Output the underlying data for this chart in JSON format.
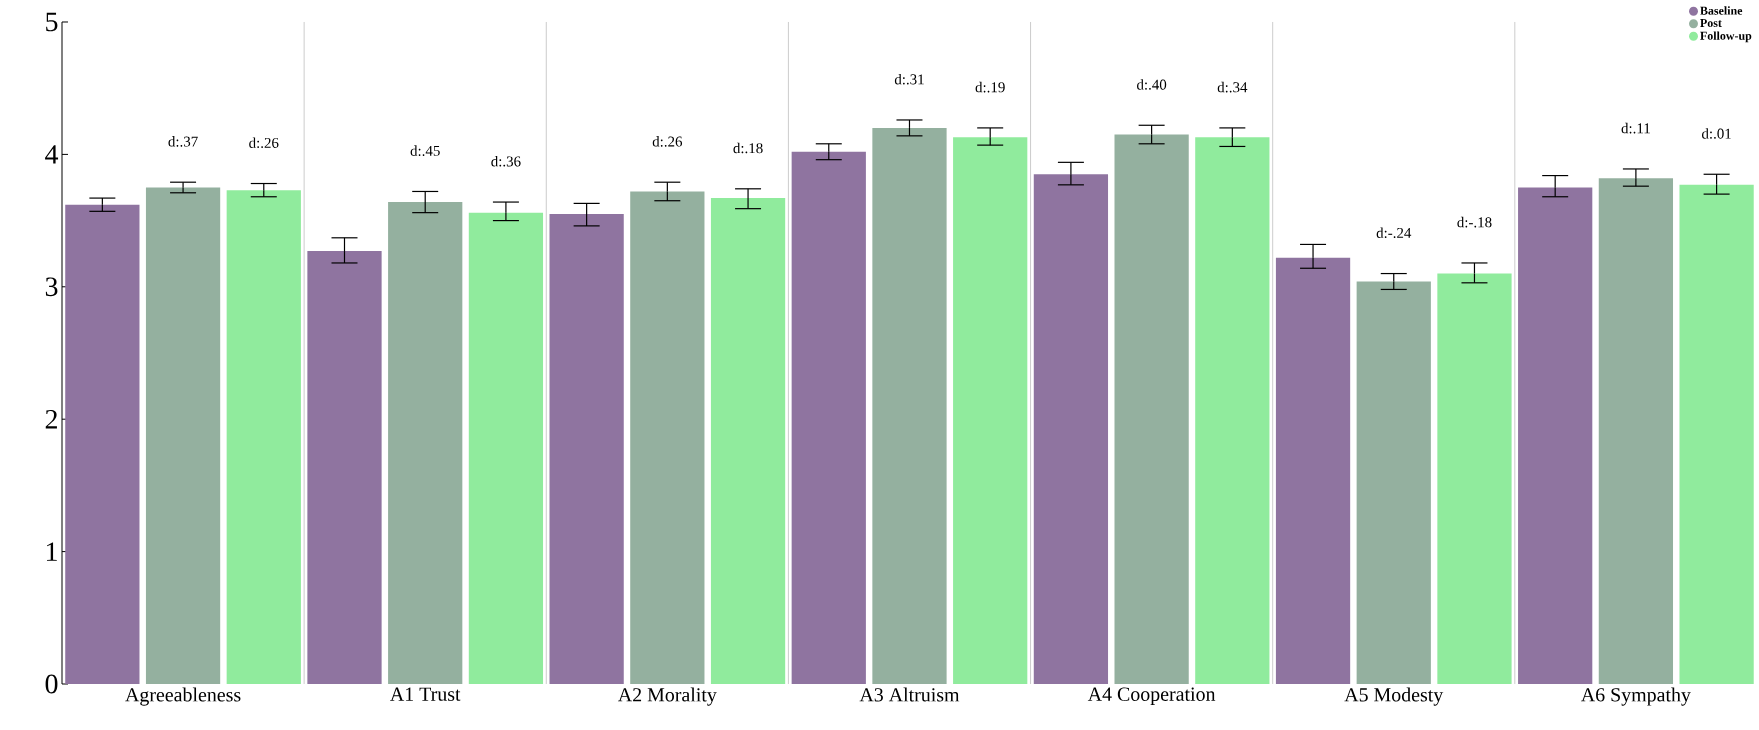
{
  "chart_data": {
    "type": "bar",
    "categories": [
      "Agreeableness",
      "A1 Trust",
      "A2 Morality",
      "A3 Altruism",
      "A4 Cooperation",
      "A5 Modesty",
      "A6 Sympathy"
    ],
    "series": [
      {
        "name": "Baseline",
        "color": "#8f74a0",
        "values": [
          3.62,
          3.27,
          3.55,
          4.02,
          3.85,
          3.22,
          3.75
        ],
        "errors": [
          [
            3.57,
            3.67
          ],
          [
            3.18,
            3.37
          ],
          [
            3.46,
            3.63
          ],
          [
            3.96,
            4.08
          ],
          [
            3.77,
            3.94
          ],
          [
            3.14,
            3.32
          ],
          [
            3.68,
            3.84
          ]
        ]
      },
      {
        "name": "Post",
        "color": "#94b09f",
        "values": [
          3.75,
          3.64,
          3.72,
          4.2,
          4.15,
          3.04,
          3.82
        ],
        "errors": [
          [
            3.71,
            3.79
          ],
          [
            3.56,
            3.72
          ],
          [
            3.65,
            3.79
          ],
          [
            4.14,
            4.26
          ],
          [
            4.08,
            4.22
          ],
          [
            2.98,
            3.1
          ],
          [
            3.76,
            3.89
          ]
        ]
      },
      {
        "name": "Follow-up",
        "color": "#90eb9d",
        "values": [
          3.73,
          3.56,
          3.67,
          4.13,
          4.13,
          3.1,
          3.77
        ],
        "errors": [
          [
            3.68,
            3.78
          ],
          [
            3.5,
            3.64
          ],
          [
            3.59,
            3.74
          ],
          [
            4.07,
            4.2
          ],
          [
            4.06,
            4.2
          ],
          [
            3.03,
            3.18
          ],
          [
            3.7,
            3.85
          ]
        ]
      }
    ],
    "annotations": [
      "d:.37",
      "d:.26",
      "d:.45",
      "d:.36",
      "d:.26",
      "d:.18",
      "d:.31",
      "d:.19",
      "d:.40",
      "d:.34",
      "d:-.24",
      "d:-.18",
      "d:.11",
      "d:.01"
    ],
    "ylim": [
      0,
      5
    ],
    "yticks": [
      0,
      1,
      2,
      3,
      4,
      5
    ],
    "grid": "x",
    "legend": "top right"
  }
}
